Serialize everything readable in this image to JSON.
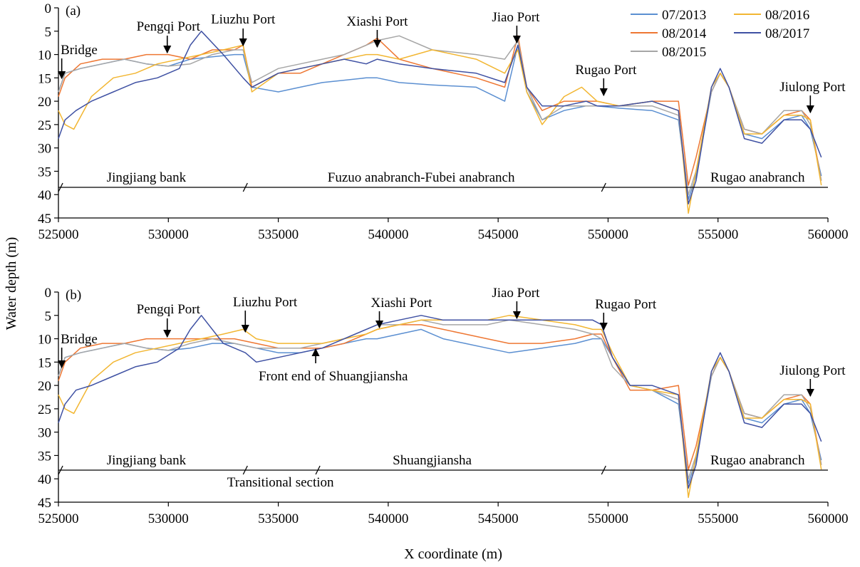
{
  "figure": {
    "xlabel": "X coordinate (m)",
    "ylabel": "Water depth (m)"
  },
  "chart_data": [
    {
      "type": "line",
      "panel_label": "(a)",
      "xlabel": "X coordinate (m)",
      "ylabel": "Water depth (m)",
      "xlim": [
        525000,
        560000
      ],
      "ylim": [
        0,
        45
      ],
      "y_inverted": true,
      "xticks": [
        "525000",
        "530000",
        "535000",
        "540000",
        "545000",
        "550000",
        "555000",
        "560000"
      ],
      "yticks": [
        "0",
        "5",
        "10",
        "15",
        "20",
        "25",
        "30",
        "35",
        "40",
        "45"
      ],
      "legend_position": "top-right",
      "legend": [
        "07/2013",
        "08/2016",
        "08/2014",
        "08/2017",
        "08/2015"
      ],
      "series": [
        {
          "name": "07/2013",
          "color": "#5b8fd1",
          "x": [
            525000,
            525300,
            526000,
            527000,
            528000,
            529000,
            530000,
            531000,
            532000,
            533000,
            533400,
            533800,
            535000,
            536000,
            537000,
            538000,
            539000,
            539500,
            540500,
            542000,
            544000,
            545300,
            545900,
            546300,
            547000,
            548000,
            549000,
            549500,
            550500,
            552000,
            553200,
            553650,
            554000,
            554700,
            555100,
            555500,
            556200,
            557000,
            558000,
            558800,
            559200,
            559700
          ],
          "y": [
            18,
            14,
            13,
            12,
            11,
            12,
            12.5,
            11,
            10.5,
            10,
            10,
            17,
            18,
            17,
            16,
            15.5,
            15,
            15,
            16,
            16.5,
            17,
            20,
            8,
            18,
            24,
            22,
            21,
            21,
            21.5,
            22,
            24,
            41,
            36,
            18,
            14,
            17,
            27,
            28,
            24,
            23,
            26,
            36
          ]
        },
        {
          "name": "08/2014",
          "color": "#ee7733",
          "x": [
            525000,
            525300,
            526000,
            527000,
            528000,
            529000,
            530000,
            531000,
            532000,
            533000,
            533400,
            533800,
            535000,
            536000,
            537000,
            538000,
            539000,
            539500,
            540500,
            542000,
            544000,
            545300,
            545900,
            546300,
            547000,
            548000,
            549000,
            549500,
            550500,
            552000,
            553200,
            553650,
            554000,
            554700,
            555100,
            555500,
            556200,
            557000,
            558000,
            558800,
            559200,
            559700
          ],
          "y": [
            19,
            15,
            12,
            11,
            11,
            10,
            10,
            11,
            9,
            9,
            8,
            17,
            14,
            14,
            12,
            10,
            8,
            6.5,
            11,
            13,
            15,
            17,
            6,
            17,
            22,
            20,
            20,
            20,
            21,
            20,
            20,
            38,
            32,
            18,
            14,
            17,
            26,
            27,
            23,
            22,
            24,
            37
          ]
        },
        {
          "name": "08/2015",
          "color": "#a6a6a6",
          "x": [
            525000,
            525300,
            526000,
            527000,
            528000,
            529000,
            530000,
            531000,
            532000,
            533000,
            533400,
            533800,
            535000,
            536000,
            537000,
            538000,
            539000,
            539500,
            540500,
            542000,
            544000,
            545300,
            545900,
            546300,
            547000,
            548000,
            549000,
            549500,
            550500,
            552000,
            553200,
            553650,
            554000,
            554700,
            555100,
            555500,
            556200,
            557000,
            558000,
            558800,
            559200,
            559700
          ],
          "y": [
            18,
            14,
            13,
            12,
            11,
            12,
            12.5,
            12,
            10,
            9,
            9,
            16,
            13,
            12,
            11,
            10,
            8,
            7,
            6,
            9,
            10,
            11,
            7,
            17,
            24,
            21,
            21,
            21,
            21,
            21,
            23,
            40,
            35,
            18,
            14,
            17,
            26,
            27,
            22,
            22,
            25,
            37
          ]
        },
        {
          "name": "08/2016",
          "color": "#f2b632",
          "x": [
            525000,
            525300,
            525700,
            526500,
            527500,
            528500,
            529500,
            530500,
            531500,
            532500,
            533400,
            533800,
            535000,
            536000,
            537000,
            538000,
            539000,
            539500,
            540500,
            542000,
            544000,
            545300,
            545900,
            546300,
            547000,
            548000,
            548800,
            549500,
            550500,
            552000,
            553200,
            553650,
            554000,
            554700,
            555100,
            555500,
            556200,
            557000,
            558000,
            558800,
            559200,
            559700
          ],
          "y": [
            22,
            25,
            26,
            19,
            15,
            14,
            12,
            11,
            10,
            9,
            8,
            18,
            14,
            13,
            12,
            11,
            10,
            10,
            11,
            9,
            11,
            14,
            9,
            18,
            25,
            19,
            17,
            20,
            21,
            20,
            22,
            44,
            35,
            17,
            14,
            17,
            27,
            27,
            23,
            23,
            24,
            38
          ]
        },
        {
          "name": "08/2017",
          "color": "#3f51a3",
          "x": [
            525000,
            525300,
            525800,
            526500,
            527500,
            528500,
            529500,
            530500,
            531000,
            531500,
            532500,
            533400,
            533800,
            535000,
            536000,
            537000,
            538000,
            539000,
            539500,
            540500,
            542000,
            544000,
            545300,
            545900,
            546300,
            547000,
            548000,
            549000,
            549500,
            550500,
            552000,
            553200,
            553650,
            554000,
            554700,
            555100,
            555500,
            556200,
            557000,
            558000,
            558800,
            559200,
            559700
          ],
          "y": [
            28,
            24,
            22,
            20,
            18,
            16,
            15,
            13,
            8,
            5,
            10,
            15,
            17,
            14,
            13,
            12,
            11,
            12,
            11,
            12,
            13,
            14,
            16,
            8,
            17,
            21,
            21,
            20,
            21,
            21,
            20,
            22,
            42,
            37,
            17,
            13,
            17,
            28,
            29,
            24,
            24,
            26,
            32
          ]
        }
      ],
      "annotations": [
        "Bridge",
        "Pengqi Port",
        "Liuzhu Port",
        "Xiashi Port",
        "Jiao Port",
        "Rugao Port",
        "Jiulong Port"
      ],
      "sections": [
        "Jingjiang bank",
        "Fuzuo anabranch-Fubei anabranch",
        "Rugao anabranch"
      ]
    },
    {
      "type": "line",
      "panel_label": "(b)",
      "xlabel": "X coordinate (m)",
      "ylabel": "Water depth (m)",
      "xlim": [
        525000,
        560000
      ],
      "ylim": [
        0,
        45
      ],
      "y_inverted": true,
      "xticks": [
        "525000",
        "530000",
        "535000",
        "540000",
        "545000",
        "550000",
        "555000",
        "560000"
      ],
      "yticks": [
        "0",
        "5",
        "10",
        "15",
        "20",
        "25",
        "30",
        "35",
        "40",
        "45"
      ],
      "series": [
        {
          "name": "07/2013",
          "color": "#5b8fd1",
          "x": [
            525000,
            525300,
            526000,
            527000,
            528000,
            529000,
            530000,
            531000,
            532000,
            533000,
            534000,
            535000,
            536000,
            537000,
            538000,
            539000,
            539500,
            540500,
            541500,
            542500,
            543500,
            544500,
            545500,
            547000,
            548500,
            549300,
            549700,
            550200,
            551000,
            552000,
            553200,
            553650,
            554000,
            554700,
            555100,
            555500,
            556200,
            557000,
            558000,
            558800,
            559200,
            559700
          ],
          "y": [
            18,
            14,
            13,
            12,
            11,
            12,
            12.5,
            12,
            11,
            11,
            12,
            13,
            13,
            12,
            11,
            10,
            10,
            9,
            8,
            10,
            11,
            12,
            13,
            12,
            11,
            10,
            10,
            14,
            20,
            21,
            24,
            41,
            36,
            18,
            14,
            17,
            27,
            28,
            24,
            23,
            26,
            36
          ]
        },
        {
          "name": "08/2014",
          "color": "#ee7733",
          "x": [
            525000,
            525300,
            526000,
            527000,
            528000,
            529000,
            530000,
            531000,
            532000,
            533000,
            534000,
            535000,
            536000,
            537000,
            538000,
            539000,
            539500,
            540500,
            541500,
            542500,
            543500,
            544500,
            545500,
            547000,
            548500,
            549300,
            549700,
            550200,
            551000,
            552000,
            553200,
            553650,
            554000,
            554700,
            555100,
            555500,
            556200,
            557000,
            558000,
            558800,
            559200,
            559700
          ],
          "y": [
            19,
            15,
            12,
            11,
            11,
            10,
            10,
            10,
            10,
            10,
            11,
            12,
            12,
            12,
            11,
            9,
            8,
            7,
            7,
            8,
            9,
            10,
            11,
            11,
            10,
            9,
            9,
            14,
            21,
            21,
            20,
            38,
            33,
            18,
            14,
            17,
            26,
            27,
            23,
            22,
            24,
            37
          ]
        },
        {
          "name": "08/2015",
          "color": "#a6a6a6",
          "x": [
            525000,
            525300,
            526000,
            527000,
            528000,
            529000,
            530000,
            531000,
            532000,
            533000,
            534000,
            535000,
            536000,
            537000,
            538000,
            539000,
            539500,
            540500,
            541500,
            542500,
            543500,
            544500,
            545500,
            547000,
            548500,
            549300,
            549700,
            550200,
            551000,
            552000,
            553200,
            553650,
            554000,
            554700,
            555100,
            555500,
            556200,
            557000,
            558000,
            558800,
            559200,
            559700
          ],
          "y": [
            18,
            14,
            13,
            12,
            11,
            12,
            12.5,
            11,
            10,
            11,
            12,
            12,
            12,
            11,
            10,
            8,
            7,
            7,
            6,
            7,
            7,
            7,
            6,
            7,
            8,
            9,
            10,
            16,
            20,
            21,
            23,
            40,
            35,
            18,
            14,
            17,
            26,
            27,
            22,
            22,
            25,
            37
          ]
        },
        {
          "name": "08/2016",
          "color": "#f2b632",
          "x": [
            525000,
            525300,
            525700,
            526500,
            527500,
            528500,
            529500,
            530500,
            531500,
            532500,
            533400,
            534000,
            535000,
            536000,
            537000,
            538000,
            539000,
            539500,
            540500,
            541500,
            542500,
            543500,
            544500,
            545500,
            547000,
            548500,
            549300,
            549700,
            550200,
            551000,
            552000,
            553200,
            553650,
            554000,
            554700,
            555100,
            555500,
            556200,
            557000,
            558000,
            558800,
            559200,
            559700
          ],
          "y": [
            22,
            25,
            26,
            19,
            15,
            13,
            12,
            11,
            10,
            9,
            8,
            10,
            11,
            11,
            11,
            10,
            9,
            8,
            7,
            6,
            6,
            6,
            6,
            5,
            6,
            7,
            8,
            8,
            13,
            20,
            21,
            22,
            44,
            35,
            17,
            14,
            17,
            27,
            27,
            23,
            23,
            24,
            38
          ]
        },
        {
          "name": "08/2017",
          "color": "#3f51a3",
          "x": [
            525000,
            525300,
            525800,
            526500,
            527500,
            528500,
            529500,
            530500,
            531000,
            531500,
            532500,
            533500,
            534000,
            535000,
            536000,
            537000,
            538000,
            539000,
            539500,
            540500,
            541500,
            542500,
            543500,
            544500,
            545500,
            547000,
            548500,
            549300,
            549700,
            550200,
            551000,
            552000,
            553200,
            553650,
            554000,
            554700,
            555100,
            555500,
            556200,
            557000,
            558000,
            558800,
            559200,
            559700
          ],
          "y": [
            28,
            24,
            21,
            20,
            18,
            16,
            15,
            12,
            8,
            5,
            11,
            13,
            15,
            14,
            13,
            12,
            10,
            8,
            7,
            6,
            5,
            6,
            6,
            6,
            6,
            6,
            6,
            6,
            7,
            14,
            20,
            20,
            22,
            42,
            37,
            17,
            13,
            17,
            28,
            29,
            24,
            24,
            26,
            32
          ]
        }
      ],
      "annotations": [
        "Bridge",
        "Pengqi Port",
        "Liuzhu Port",
        "Xiashi Port",
        "Jiao Port",
        "Rugao Port",
        "Jiulong Port",
        "Front end of Shuangjiansha"
      ],
      "sections": [
        "Jingjiang bank",
        "Transitional section",
        "Shuangjiansha",
        "Rugao anabranch"
      ]
    }
  ]
}
